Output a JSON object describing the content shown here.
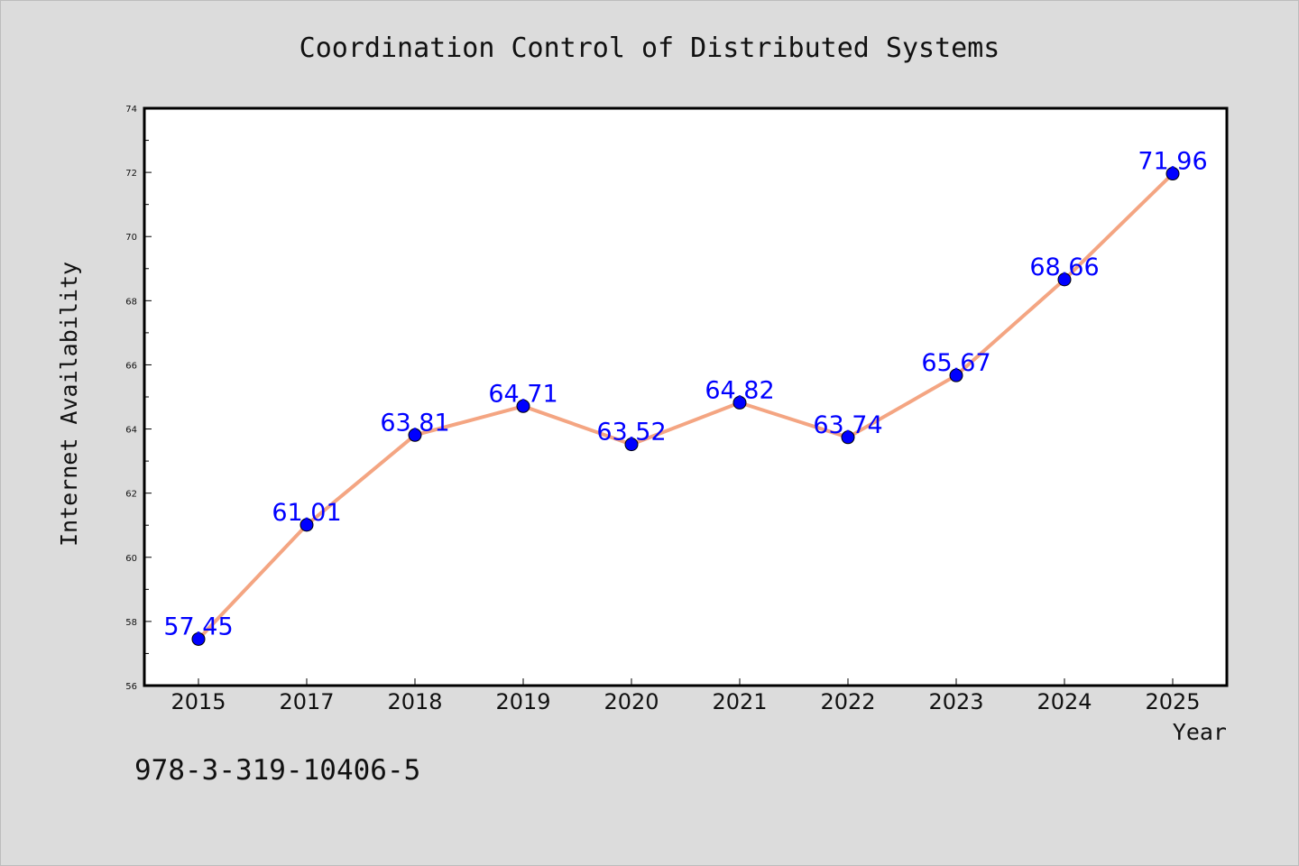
{
  "chart_data": {
    "type": "line",
    "title": "Coordination Control of Distributed Systems",
    "xlabel": "Year",
    "ylabel": "Internet Availability",
    "categories": [
      "2015",
      "2017",
      "2018",
      "2019",
      "2020",
      "2021",
      "2022",
      "2023",
      "2024",
      "2025"
    ],
    "series": [
      {
        "values": [
          57.45,
          61.01,
          63.81,
          64.71,
          63.52,
          64.82,
          63.74,
          65.67,
          68.66,
          71.96
        ]
      }
    ],
    "ylim": [
      56,
      74
    ],
    "y_ticks": [
      56,
      58,
      60,
      62,
      64,
      66,
      68,
      70,
      72,
      74
    ],
    "grid": false,
    "data_labels": [
      "57.45",
      "61.01",
      "63.81",
      "64.71",
      "63.52",
      "64.82",
      "63.74",
      "65.67",
      "68.66",
      "71.96"
    ],
    "colors": {
      "line": "#f4a582",
      "marker": "#0000ff",
      "label": "#0000ff",
      "background": "#dcdcdc",
      "plot_background": "#ffffff"
    }
  },
  "footer": {
    "isbn": "978-3-319-10406-5"
  }
}
